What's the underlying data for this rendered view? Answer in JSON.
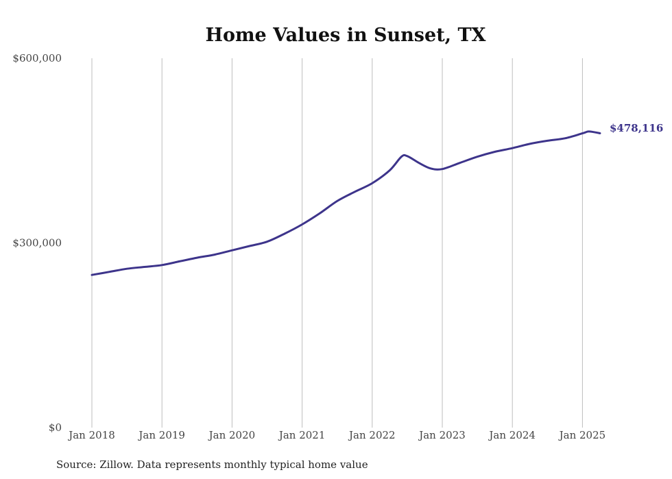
{
  "chart_data": {
    "type": "line",
    "title": "Home Values in Sunset, TX",
    "xlabel": "",
    "ylabel": "",
    "ylim": [
      0,
      600000
    ],
    "yticks": [
      {
        "value": 0,
        "label": "$0"
      },
      {
        "value": 300000,
        "label": "$300,000"
      },
      {
        "value": 600000,
        "label": "$600,000"
      }
    ],
    "xticks": [
      {
        "value": 2018,
        "label": "Jan 2018"
      },
      {
        "value": 2019,
        "label": "Jan 2019"
      },
      {
        "value": 2020,
        "label": "Jan 2020"
      },
      {
        "value": 2021,
        "label": "Jan 2021"
      },
      {
        "value": 2022,
        "label": "Jan 2022"
      },
      {
        "value": 2023,
        "label": "Jan 2023"
      },
      {
        "value": 2024,
        "label": "Jan 2024"
      },
      {
        "value": 2025,
        "label": "Jan 2025"
      }
    ],
    "xlim": [
      "Jan 2018",
      "Apr 2025"
    ],
    "grid": "vertical",
    "legend": "none",
    "end_label": "$478,116",
    "color": "#3d348b",
    "series": [
      {
        "x": [
          "Jan 2018",
          "Apr 2018",
          "Jul 2018",
          "Oct 2018",
          "Jan 2019",
          "Apr 2019",
          "Jul 2019",
          "Oct 2019",
          "Jan 2020",
          "Apr 2020",
          "Jul 2020",
          "Oct 2020",
          "Jan 2021",
          "Apr 2021",
          "Jul 2021",
          "Oct 2021",
          "Jan 2022",
          "Apr 2022",
          "Jun 2022",
          "Jul 2022",
          "Sep 2022",
          "Nov 2022",
          "Jan 2023",
          "Apr 2023",
          "Jul 2023",
          "Oct 2023",
          "Jan 2024",
          "Apr 2024",
          "Jul 2024",
          "Oct 2024",
          "Jan 2025",
          "Feb 2025",
          "Mar 2025",
          "Apr 2025"
        ],
        "values": [
          248000,
          253000,
          258000,
          261000,
          264000,
          270000,
          276000,
          281000,
          288000,
          295000,
          302000,
          315000,
          330000,
          348000,
          368000,
          383000,
          397000,
          418000,
          440000,
          441000,
          430000,
          421000,
          420000,
          430000,
          440000,
          448000,
          454000,
          461000,
          466000,
          470000,
          478000,
          481000,
          480000,
          478116
        ]
      }
    ]
  },
  "footer": {
    "source": "Source: Zillow. Data represents monthly typical home value"
  }
}
